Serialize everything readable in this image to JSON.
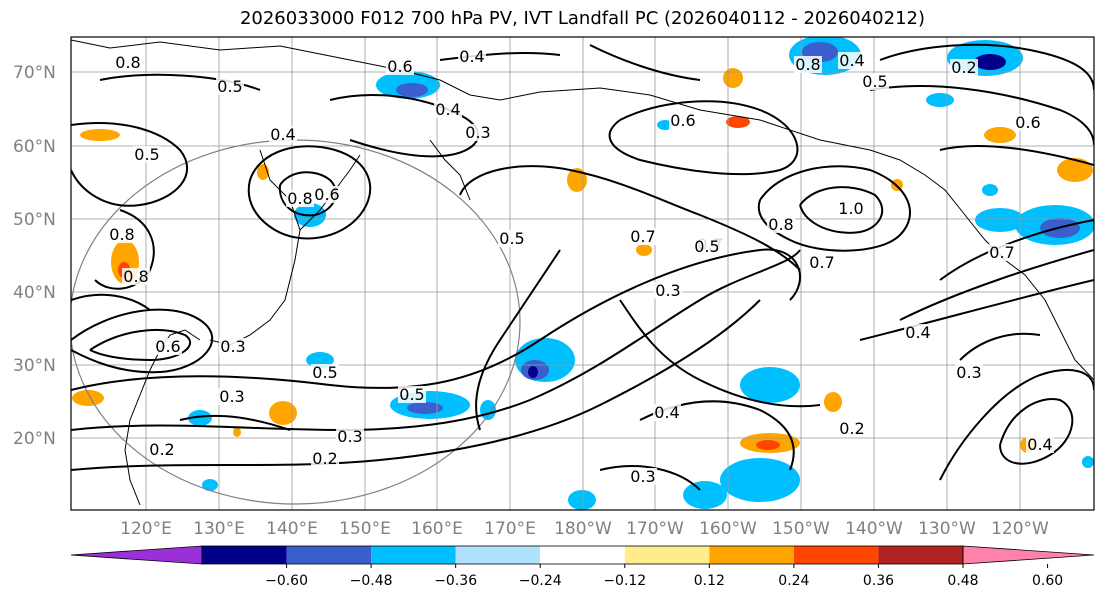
{
  "title": "2026033000 F012 700 hPa PV, IVT Landfall PC (2026040112 - 2026040212)",
  "lat_labels": [
    "70°N",
    "60°N",
    "50°N",
    "40°N",
    "30°N",
    "20°N"
  ],
  "lon_labels": [
    "120°E",
    "130°E",
    "140°E",
    "150°E",
    "160°E",
    "170°E",
    "180°W",
    "170°W",
    "160°W",
    "150°W",
    "140°W",
    "130°W",
    "120°W"
  ],
  "colorbar": {
    "ticks": [
      "−0.60",
      "−0.48",
      "−0.36",
      "−0.24",
      "−0.12",
      "0.12",
      "0.24",
      "0.36",
      "0.48",
      "0.60"
    ],
    "colors": [
      "#9b30d9",
      "#00008b",
      "#3a5fcd",
      "#00bfff",
      "#b0e2ff",
      "#ffffff",
      "#ffec8b",
      "#ffa500",
      "#ff4500",
      "#b22222",
      "#ff82ab"
    ]
  },
  "contour_labels": [
    "0.8",
    "0.6",
    "0.4",
    "0.5",
    "0.4",
    "0.3",
    "0.6",
    "0.4",
    "0.5",
    "0.8",
    "0.6",
    "0.7",
    "0.5",
    "0.7",
    "0.8",
    "1.0",
    "0.7",
    "0.3",
    "0.6",
    "0.7",
    "0.5",
    "0.8",
    "0.3",
    "0.5",
    "0.3",
    "0.2",
    "0.3",
    "0.5",
    "0.4",
    "0.2",
    "0.2",
    "0.4",
    "0.3",
    "0.4",
    "0.3",
    "0.2",
    "0.8",
    "0.6",
    "0.8",
    "0.5",
    "0.4"
  ]
}
